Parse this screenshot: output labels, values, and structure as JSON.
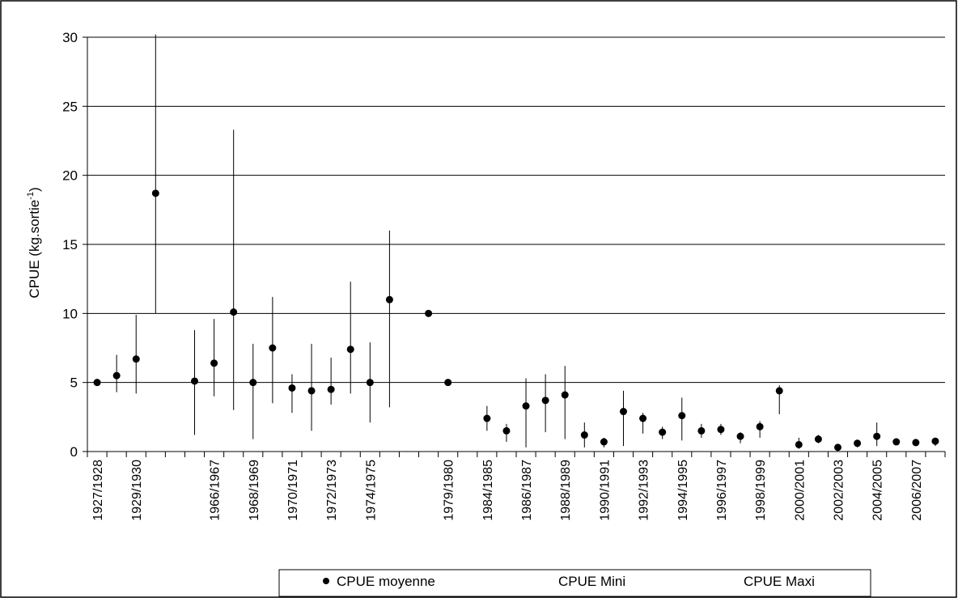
{
  "chart_data": {
    "type": "scatter",
    "title": "",
    "xlabel": "",
    "ylabel": "CPUE (kg.sortie",
    "ylabel_superscript": "-1",
    "ylabel_close": ")",
    "ylim": [
      0,
      30
    ],
    "y_ticks": [
      0,
      5,
      10,
      15,
      20,
      25,
      30
    ],
    "grid": "horizontal",
    "legend_placement": "bottom",
    "categories": [
      "1927/1928",
      "",
      "1929/1930",
      "",
      "",
      "",
      "1966/1967",
      "",
      "1968/1969",
      "",
      "1970/1971",
      "",
      "1972/1973",
      "",
      "1974/1975",
      "",
      "",
      "",
      "1979/1980",
      "",
      "1984/1985",
      "",
      "1986/1987",
      "",
      "1988/1989",
      "",
      "1990/1991",
      "",
      "1992/1993",
      "",
      "1994/1995",
      "",
      "1996/1997",
      "",
      "1998/1999",
      "",
      "2000/2001",
      "",
      "2002/2003",
      "",
      "2004/2005",
      "",
      "2006/2007",
      ""
    ],
    "series": [
      {
        "name": "CPUE moyenne",
        "marker": "circle",
        "values": [
          5.0,
          5.5,
          6.7,
          18.7,
          null,
          5.1,
          6.4,
          10.1,
          5.0,
          7.5,
          4.6,
          4.4,
          4.5,
          7.4,
          5.0,
          11.0,
          null,
          10.0,
          5.0,
          null,
          2.4,
          1.5,
          3.3,
          3.7,
          4.1,
          1.2,
          0.7,
          2.9,
          2.4,
          1.4,
          2.6,
          1.5,
          1.6,
          1.1,
          1.8,
          4.4,
          0.5,
          0.9,
          0.3,
          0.6,
          1.1,
          0.7,
          0.65,
          0.75
        ]
      },
      {
        "name": "CPUE Mini",
        "marker": "none",
        "values": [
          null,
          4.3,
          4.2,
          10.0,
          null,
          1.2,
          4.0,
          3.0,
          0.9,
          3.5,
          2.8,
          1.5,
          3.4,
          4.2,
          2.1,
          3.2,
          null,
          null,
          null,
          null,
          1.5,
          0.7,
          0.3,
          1.4,
          0.9,
          0.3,
          0.3,
          0.4,
          1.3,
          0.9,
          0.8,
          1.0,
          1.2,
          0.6,
          1.0,
          2.7,
          0.2,
          0.6,
          0.1,
          0.3,
          0.4,
          0.5,
          0.4,
          0.4
        ]
      },
      {
        "name": "CPUE Maxi",
        "marker": "none",
        "values": [
          null,
          7.0,
          9.9,
          30.2,
          null,
          8.8,
          9.6,
          23.3,
          7.8,
          11.2,
          5.6,
          7.8,
          6.8,
          12.3,
          7.9,
          16.0,
          null,
          null,
          null,
          null,
          3.3,
          2.0,
          5.3,
          5.6,
          6.2,
          2.1,
          1.0,
          4.4,
          2.8,
          1.8,
          3.9,
          2.0,
          2.0,
          1.4,
          2.2,
          4.8,
          1.0,
          1.2,
          0.5,
          0.8,
          2.1,
          0.9,
          0.9,
          1.0
        ]
      }
    ]
  }
}
